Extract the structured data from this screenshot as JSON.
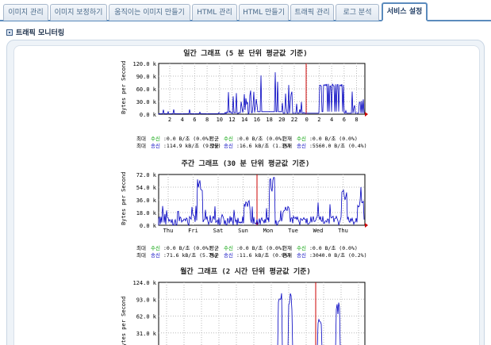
{
  "tabs": [
    {
      "label": "이미지 관리"
    },
    {
      "label": "이미지 보정하기"
    },
    {
      "label": "움직이는 이미지 만들기"
    },
    {
      "label": "HTML 관리"
    },
    {
      "label": "HTML 만들기"
    },
    {
      "label": "트래픽 관리"
    },
    {
      "label": "로그 분석"
    },
    {
      "label": "서비스 설정",
      "active": true
    }
  ],
  "section_title": "트래픽 모니터링",
  "colors": {
    "accent": "#5b8bbd",
    "in": "#00a000",
    "out": "#0000c0",
    "grid": "#cccccc",
    "now_marker": "#cc0000"
  },
  "graphs": [
    {
      "title": "일간 그래프 (5 분 단위 평균값 기준)",
      "ylabel": "Bytes per Second",
      "yticks": [
        "120.0 k",
        "90.0 k",
        "60.0 k",
        "30.0 k",
        "0.0 k"
      ],
      "xticks": [
        "2",
        "4",
        "6",
        "8",
        "10",
        "12",
        "14",
        "16",
        "18",
        "20",
        "22",
        "0",
        "2",
        "4",
        "6",
        "8"
      ],
      "stats": {
        "max_label": "최대",
        "avg_label": "평균",
        "cur_label": "현재",
        "in_label": "수신",
        "out_label": "송신",
        "max_in": ":0.0 B/초 (0.0%)",
        "avg_in": ":0.0 B/초 (0.0%)",
        "cur_in": ":0.0 B/초 (0.0%)",
        "max_out": ":114.9 kB/초 (9.2%)",
        "avg_out": ":16.6 kB/초 (1.3%)",
        "cur_out": ":5560.0 B/초 (0.4%)"
      }
    },
    {
      "title": "주간 그래프 (30 분 단위 평균값 기준)",
      "ylabel": "Bytes per Second",
      "yticks": [
        "72.0 k",
        "54.0 k",
        "36.0 k",
        "18.0 k",
        "0.0 k"
      ],
      "xticks": [
        "Thu",
        "Fri",
        "Sat",
        "Sun",
        "Mon",
        "Tue",
        "Wed",
        "Thu"
      ],
      "stats": {
        "max_label": "최대",
        "avg_label": "평균",
        "cur_label": "현재",
        "in_label": "수신",
        "out_label": "송신",
        "max_in": ":0.0 B/초 (0.0%)",
        "avg_in": ":0.0 B/초 (0.0%)",
        "cur_in": ":0.0 B/초 (0.0%)",
        "max_out": ":71.6 kB/초 (5.7%)",
        "avg_out": ":11.6 kB/초 (0.9%)",
        "cur_out": ":3040.0 B/초 (0.2%)"
      }
    },
    {
      "title": "월간 그래프 (2 시간 단위 평균값 기준)",
      "ylabel": "Bytes per Second",
      "yticks": [
        "124.0 k",
        "93.0 k",
        "62.0 k",
        "31.0 k"
      ]
    }
  ]
}
